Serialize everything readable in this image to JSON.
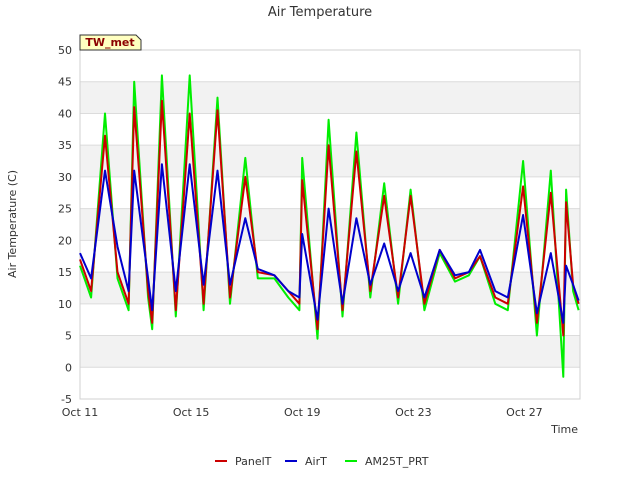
{
  "chart_data": {
    "type": "line",
    "title": "Air Temperature",
    "xlabel": "Time",
    "ylabel": "Air Temperature (C)",
    "station_label": "TW_met",
    "xlim": [
      0,
      18
    ],
    "ylim": [
      -5,
      50
    ],
    "yticks": [
      -5,
      0,
      5,
      10,
      15,
      20,
      25,
      30,
      35,
      40,
      45,
      50
    ],
    "xticks": [
      {
        "label": "Oct 11",
        "day": 0
      },
      {
        "label": "Oct 15",
        "day": 4
      },
      {
        "label": "Oct 19",
        "day": 8
      },
      {
        "label": "Oct 23",
        "day": 12
      },
      {
        "label": "Oct 27",
        "day": 16
      }
    ],
    "x_day_offsets": [
      0.0,
      0.4,
      0.9,
      1.4,
      1.9,
      2.4,
      2.9,
      3.4,
      3.9,
      4.4,
      4.9,
      5.4,
      5.9,
      6.4,
      6.9,
      7.4,
      7.9,
      8.4,
      8.9,
      9.4,
      9.9,
      10.4,
      10.9,
      11.4,
      11.9,
      12.4,
      12.9,
      13.4,
      13.9,
      14.4,
      14.9,
      15.4,
      15.9,
      16.4,
      16.9,
      17.4
    ],
    "series": [
      {
        "name": "PanelT",
        "color": "#cc0000",
        "values": [
          17.0,
          12.0,
          36.5,
          15.0,
          10.0,
          41.0,
          12.0,
          7.0,
          42.0,
          9.0,
          40.0,
          10.0,
          40.5,
          11.0,
          30.0,
          15.0,
          14.5,
          12.0,
          10.0,
          29.5,
          6.0,
          35.0,
          9.0,
          34.0,
          12.0,
          27.0,
          11.0,
          27.0,
          10.0,
          18.5,
          14.0,
          15.0,
          17.5,
          11.0,
          10.0,
          28.5,
          7.0,
          27.5,
          5.0,
          26.0,
          13.0,
          10.0
        ]
      },
      {
        "name": "AirT",
        "color": "#0000cc",
        "values": [
          18.0,
          14.0,
          31.0,
          19.0,
          12.0,
          31.0,
          14.0,
          9.0,
          32.0,
          12.0,
          32.0,
          13.0,
          31.0,
          13.0,
          23.5,
          15.5,
          14.5,
          12.0,
          11.0,
          21.0,
          7.5,
          25.0,
          10.0,
          23.5,
          13.0,
          19.5,
          12.0,
          18.0,
          11.0,
          18.5,
          14.5,
          15.0,
          18.5,
          12.0,
          11.0,
          24.0,
          8.5,
          18.0,
          7.0,
          16.0,
          13.0,
          10.5
        ]
      },
      {
        "name": "AM25T_PRT",
        "color": "#00ee00",
        "values": [
          16.0,
          11.0,
          40.0,
          14.0,
          9.0,
          45.0,
          11.0,
          6.0,
          46.0,
          8.0,
          46.0,
          9.0,
          42.5,
          10.0,
          33.0,
          14.0,
          14.0,
          11.0,
          9.0,
          33.0,
          4.5,
          39.0,
          8.0,
          37.0,
          11.0,
          29.0,
          10.0,
          28.0,
          9.0,
          18.0,
          13.5,
          14.5,
          17.5,
          10.0,
          9.0,
          32.5,
          5.0,
          31.0,
          -1.5,
          28.0,
          12.0,
          9.0
        ]
      }
    ],
    "series_x": [
      0.0,
      0.4,
      0.9,
      1.35,
      1.75,
      1.95,
      2.45,
      2.6,
      2.95,
      3.45,
      3.95,
      4.45,
      4.95,
      5.4,
      5.95,
      6.4,
      7.0,
      7.5,
      7.9,
      8.0,
      8.55,
      8.95,
      9.45,
      9.95,
      10.45,
      10.95,
      11.45,
      11.9,
      12.4,
      12.95,
      13.5,
      14.0,
      14.4,
      14.95,
      15.4,
      15.95,
      16.45,
      16.95,
      17.4,
      17.5,
      17.75,
      17.95
    ],
    "legend": {
      "position": "bottom-center",
      "entries": [
        "PanelT",
        "AirT",
        "AM25T_PRT"
      ]
    },
    "grid": true
  }
}
